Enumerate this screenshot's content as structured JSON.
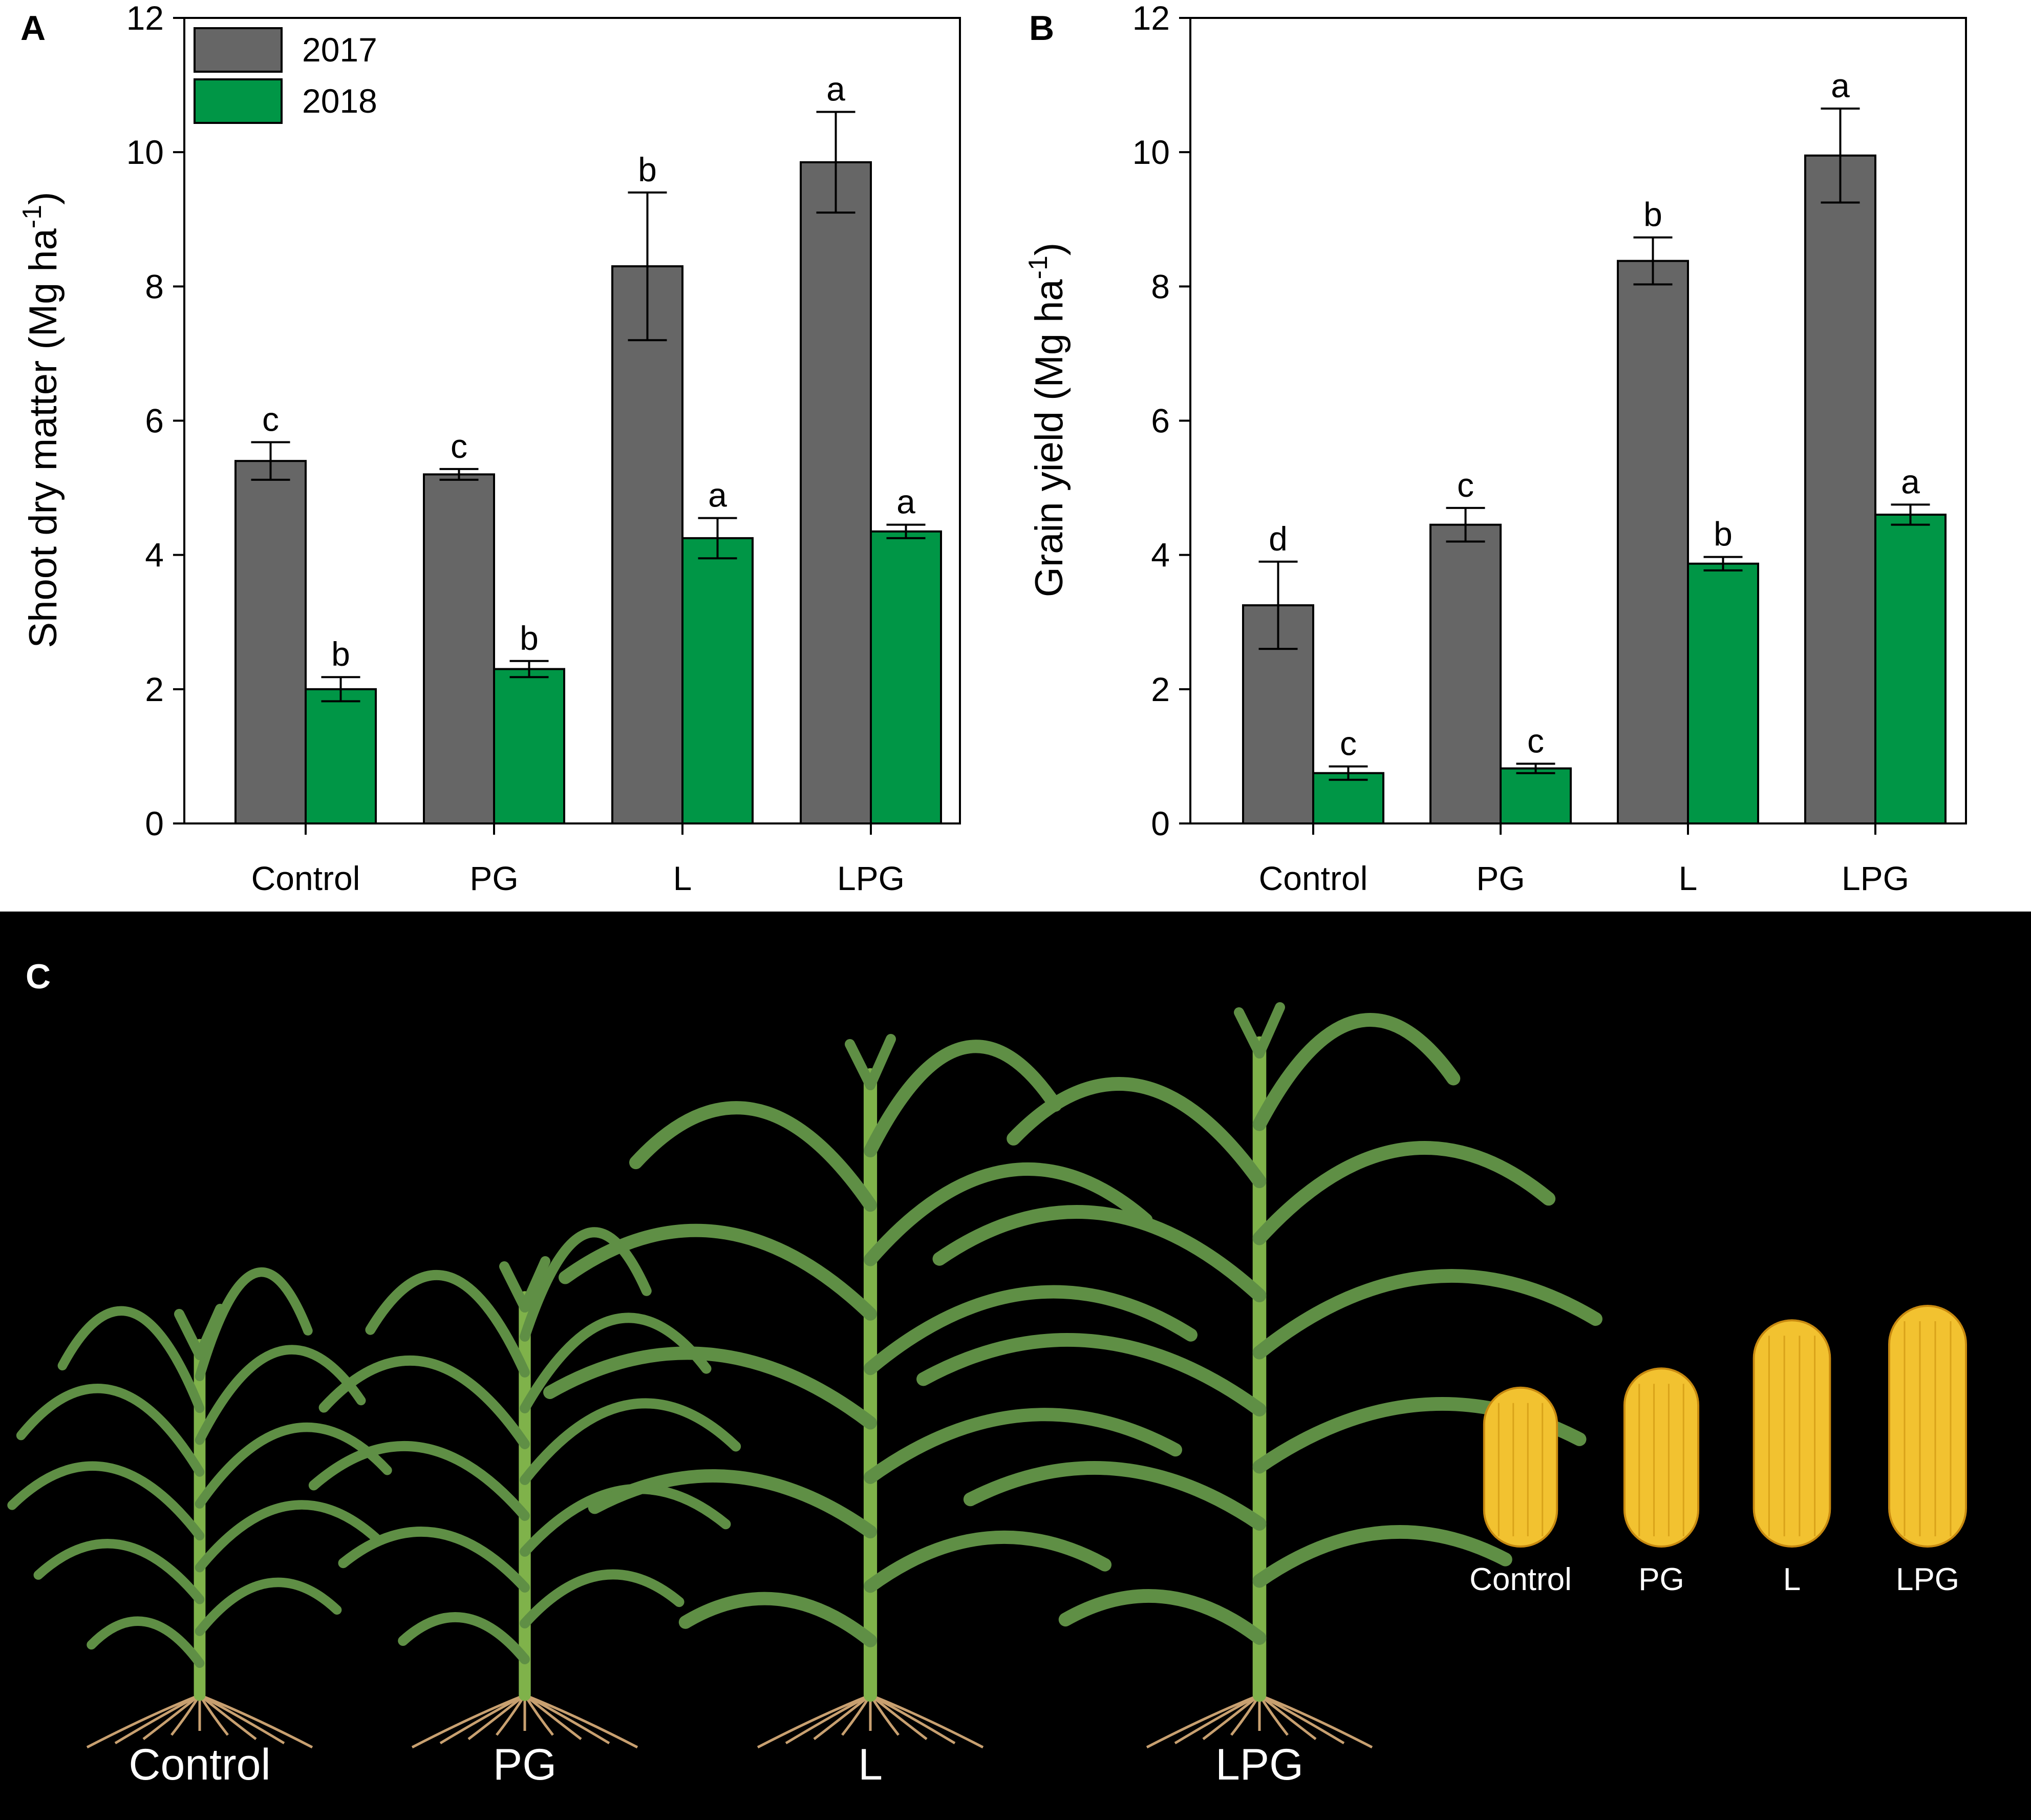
{
  "colors": {
    "series_2017": "#666666",
    "series_2018": "#009646",
    "photo_background": "#000000",
    "leaf_green": "#5f8f45",
    "stem_green": "#7fb24a",
    "kernel_yellow": "#f2c230"
  },
  "chart_data": [
    {
      "panel": "A",
      "type": "bar",
      "ylabel": "Shoot dry matter (Mg ha",
      "ylabel_sup": "-1",
      "ylabel_tail": ")",
      "ylim": [
        0,
        12
      ],
      "yticks": [
        "0",
        "2",
        "4",
        "6",
        "8",
        "10",
        "12"
      ],
      "categories": [
        "Control",
        "PG",
        "L",
        "LPG"
      ],
      "legend_position": "top-left",
      "series": [
        {
          "name": "2017",
          "values": [
            5.4,
            5.2,
            8.3,
            9.85
          ],
          "errors": [
            0.28,
            0.08,
            1.1,
            0.75
          ],
          "letters": [
            "c",
            "c",
            "b",
            "a"
          ]
        },
        {
          "name": "2018",
          "values": [
            2.0,
            2.3,
            4.25,
            4.35
          ],
          "errors": [
            0.18,
            0.12,
            0.3,
            0.1
          ],
          "letters": [
            "b",
            "b",
            "a",
            "a"
          ]
        }
      ]
    },
    {
      "panel": "B",
      "type": "bar",
      "ylabel": "Grain yield (Mg ha",
      "ylabel_sup": "-1",
      "ylabel_tail": ")",
      "ylim": [
        0,
        12
      ],
      "yticks": [
        "0",
        "2",
        "4",
        "6",
        "8",
        "10",
        "12"
      ],
      "categories": [
        "Control",
        "PG",
        "L",
        "LPG"
      ],
      "series": [
        {
          "name": "2017",
          "values": [
            3.25,
            4.45,
            8.38,
            9.95
          ],
          "errors": [
            0.65,
            0.25,
            0.35,
            0.7
          ],
          "letters": [
            "d",
            "c",
            "b",
            "a"
          ]
        },
        {
          "name": "2018",
          "values": [
            0.75,
            0.82,
            3.87,
            4.6
          ],
          "errors": [
            0.1,
            0.07,
            0.1,
            0.15
          ],
          "letters": [
            "c",
            "c",
            "b",
            "a"
          ]
        }
      ]
    }
  ],
  "photo": {
    "panel": "C",
    "plants": [
      {
        "label": "Control",
        "scale": 0.48
      },
      {
        "label": "PG",
        "scale": 0.54
      },
      {
        "label": "L",
        "scale": 0.82
      },
      {
        "label": "LPG",
        "scale": 0.86
      }
    ],
    "ears": [
      {
        "label": "Control",
        "scale": 0.66
      },
      {
        "label": "PG",
        "scale": 0.74
      },
      {
        "label": "L",
        "scale": 0.94
      },
      {
        "label": "LPG",
        "scale": 1.0
      }
    ]
  }
}
